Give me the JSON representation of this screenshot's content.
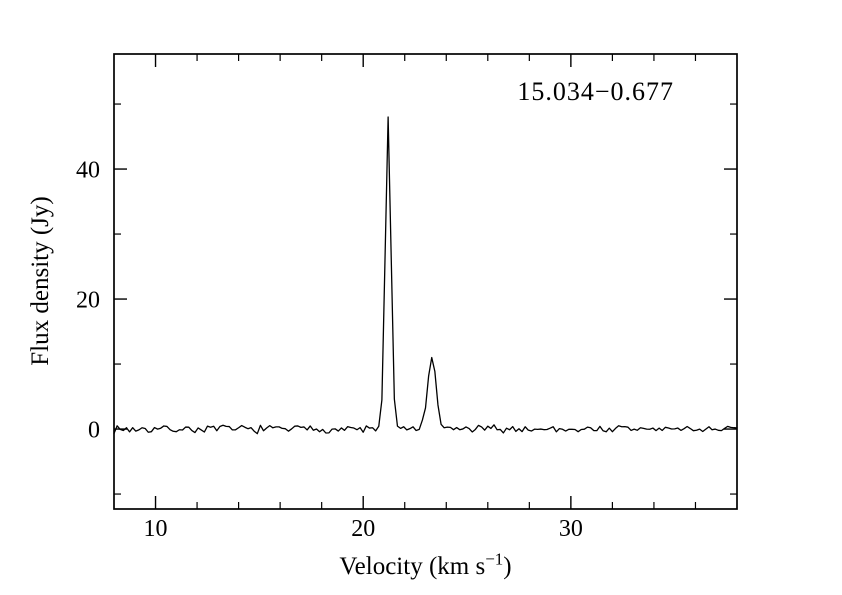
{
  "figure": {
    "background_color": "#ffffff",
    "frame_color": "#000000",
    "line_color": "#000000",
    "text_color": "#000000"
  },
  "chart_data": {
    "type": "line",
    "title": "15.034−0.677",
    "xlabel": {
      "pre": "Velocity (km s",
      "sup": "−1",
      "post": ")"
    },
    "ylabel": "Flux density (Jy)",
    "xlim": [
      8,
      38
    ],
    "ylim": [
      -12.3,
      57.7
    ],
    "xticks_major": [
      10,
      20,
      30
    ],
    "xtick_labels": [
      "10",
      "20",
      "30"
    ],
    "xticks_minor": [
      12,
      14,
      16,
      18,
      22,
      24,
      26,
      28,
      32,
      34,
      36
    ],
    "yticks_major": [
      0,
      20,
      40
    ],
    "ytick_labels": [
      "0",
      "20",
      "40"
    ],
    "yticks_minor": [
      -10,
      10,
      30,
      50
    ],
    "grid": false,
    "legend": null,
    "series": [
      {
        "name": "maser-spectrum",
        "kind": "noisy-spectrum",
        "baseline_flux": 0,
        "noise_sigma_jy": 0.3,
        "channel_width_kms": 0.15,
        "noise_seed": 7,
        "peaks": [
          {
            "center_velocity": 21.25,
            "peak_flux": 48,
            "fwhm": 0.32
          },
          {
            "center_velocity": 23.35,
            "peak_flux": 11,
            "fwhm": 0.47
          }
        ]
      }
    ]
  }
}
